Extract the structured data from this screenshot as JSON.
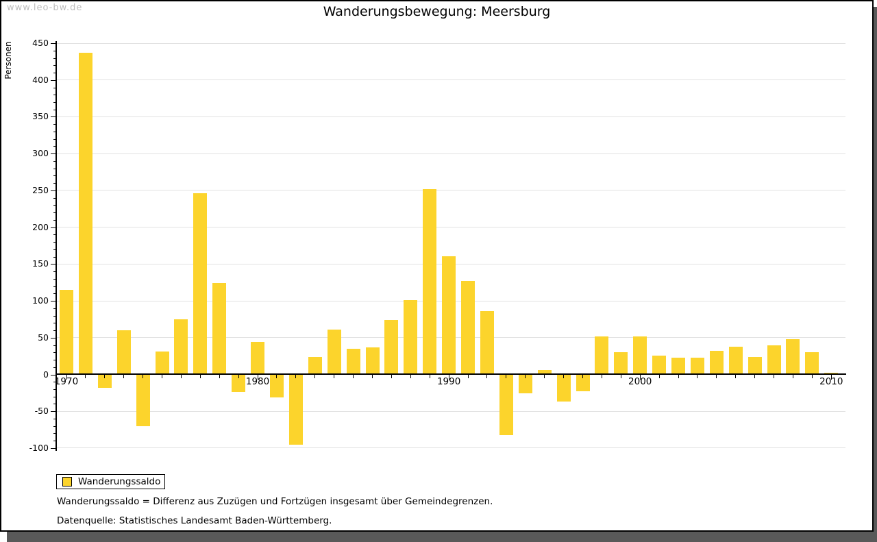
{
  "watermark": "www.leo-bw.de",
  "header": {
    "title": "Wanderungsbewegung: Meersburg"
  },
  "chart_data": {
    "type": "bar",
    "title": "Wanderungsbewegung: Meersburg",
    "xlabel": "",
    "ylabel": "Personen",
    "ylim": [
      -100,
      450
    ],
    "y_major_step": 50,
    "y_minor_step": 10,
    "x_labeled_ticks": [
      1970,
      1980,
      1990,
      2000,
      2010
    ],
    "grid": "horizontal major gridlines, light gray; zero line black",
    "legend_position": "bottom-left below plot",
    "bar_color": "#FCD42C",
    "series": [
      {
        "name": "Wanderungssaldo",
        "x": [
          1970,
          1971,
          1972,
          1973,
          1974,
          1975,
          1976,
          1977,
          1978,
          1979,
          1980,
          1981,
          1982,
          1983,
          1984,
          1985,
          1986,
          1987,
          1988,
          1989,
          1990,
          1991,
          1992,
          1993,
          1994,
          1995,
          1996,
          1997,
          1998,
          1999,
          2000,
          2001,
          2002,
          2003,
          2004,
          2005,
          2006,
          2007,
          2008,
          2009,
          2010
        ],
        "values": [
          115,
          437,
          -18,
          60,
          -70,
          31,
          75,
          246,
          124,
          -24,
          44,
          -31,
          -95,
          24,
          61,
          35,
          37,
          74,
          101,
          252,
          161,
          127,
          86,
          -82,
          -26,
          6,
          -37,
          -23,
          52,
          30,
          52,
          26,
          23,
          23,
          32,
          38,
          24,
          40,
          48,
          30,
          2
        ]
      }
    ]
  },
  "legend": {
    "items": [
      {
        "label": "Wanderungssaldo",
        "color": "#FCD42C"
      }
    ]
  },
  "footnotes": [
    "Wanderungssaldo = Differenz aus Zuzügen und Fortzügen insgesamt über Gemeindegrenzen.",
    "Datenquelle: Statistisches Landesamt Baden-Württemberg."
  ]
}
